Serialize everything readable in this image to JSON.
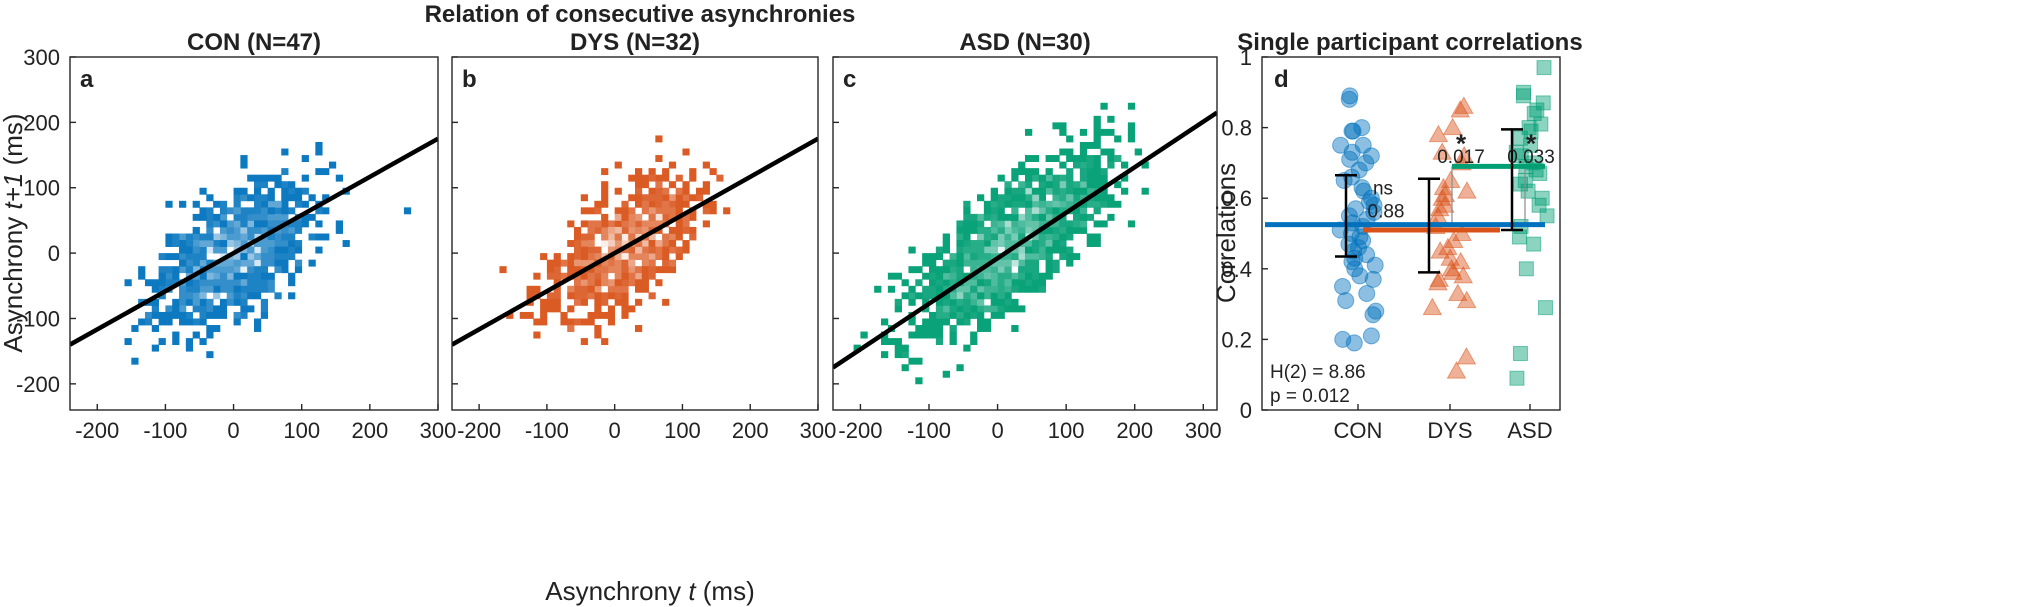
{
  "figure_title": "Relation of consecutive asynchronies",
  "shared_xlabel": "Asynchrony t (ms)",
  "shared_ylabel": "Asynchrony t+1 (ms)",
  "shared_xlabel_parts": {
    "pre": "Asynchrony ",
    "ital": "t",
    "post": " (ms)"
  },
  "shared_ylabel_parts": {
    "pre": "Asynchrony ",
    "ital": "t+1",
    "post": " (ms)"
  },
  "chart_data": [
    {
      "type": "heatmap",
      "panel": "a",
      "title": "CON (N=47)",
      "color": "#0072BD",
      "xlim": [
        -240,
        300
      ],
      "ylim": [
        -240,
        300
      ],
      "xticks": [
        -200,
        -100,
        0,
        100,
        200,
        300
      ],
      "yticks": [
        -200,
        -100,
        0,
        100,
        200,
        300
      ],
      "xtick_labels": [
        "-200",
        "-100",
        "0",
        "100",
        "200",
        "300"
      ],
      "ytick_labels": [
        "-200",
        "-100",
        "0",
        "100",
        "200",
        "300"
      ],
      "regression": {
        "x": [
          -240,
          300
        ],
        "y": [
          -140,
          175
        ]
      },
      "cloud": {
        "cx": 0,
        "cy": 0,
        "sx": 55,
        "sy": 55,
        "rho": 0.55,
        "n": 900,
        "seed": 11
      }
    },
    {
      "type": "heatmap",
      "panel": "b",
      "title": "DYS (N=32)",
      "color": "#D95319",
      "xlim": [
        -240,
        300
      ],
      "ylim": [
        -240,
        300
      ],
      "xticks": [
        -200,
        -100,
        0,
        100,
        200,
        300
      ],
      "yticks": [
        -200,
        -100,
        0,
        100,
        200,
        300
      ],
      "xtick_labels": [
        "-200",
        "-100",
        "0",
        "100",
        "200",
        "300"
      ],
      "ytick_labels": [],
      "regression": {
        "x": [
          -240,
          300
        ],
        "y": [
          -140,
          175
        ]
      },
      "cloud": {
        "cx": 10,
        "cy": 5,
        "sx": 55,
        "sy": 52,
        "rho": 0.6,
        "n": 750,
        "seed": 23
      }
    },
    {
      "type": "heatmap",
      "panel": "c",
      "title": "ASD (N=30)",
      "color": "#009E73",
      "xlim": [
        -240,
        320
      ],
      "ylim": [
        -240,
        300
      ],
      "xticks": [
        -200,
        -100,
        0,
        100,
        200,
        300
      ],
      "yticks": [
        -200,
        -100,
        0,
        100,
        200,
        300
      ],
      "xtick_labels": [
        "-200",
        "-100",
        "0",
        "100",
        "200",
        "300"
      ],
      "ytick_labels": [],
      "regression": {
        "x": [
          -240,
          320
        ],
        "y": [
          -175,
          215
        ]
      },
      "cloud": {
        "cx": 20,
        "cy": 15,
        "sx": 70,
        "sy": 68,
        "rho": 0.75,
        "n": 1200,
        "seed": 37
      }
    },
    {
      "type": "scatter",
      "panel": "d",
      "title": "Single participant correlations",
      "xlabel": "",
      "ylabel": "Correlations",
      "ylim": [
        0,
        1
      ],
      "yticks": [
        0,
        0.2,
        0.4,
        0.6,
        0.8,
        1
      ],
      "ytick_labels": [
        "0",
        "0.2",
        "0.4",
        "0.6",
        "0.8",
        "1"
      ],
      "categories": [
        "CON",
        "DYS",
        "ASD"
      ],
      "series": [
        {
          "name": "CON",
          "color": "#0072BD",
          "marker": "circle",
          "median": 0.525,
          "iqr": [
            0.435,
            0.665
          ],
          "values": [
            0.89,
            0.88,
            0.8,
            0.79,
            0.79,
            0.75,
            0.75,
            0.73,
            0.72,
            0.71,
            0.7,
            0.68,
            0.66,
            0.65,
            0.63,
            0.62,
            0.6,
            0.59,
            0.58,
            0.57,
            0.56,
            0.55,
            0.54,
            0.53,
            0.52,
            0.51,
            0.5,
            0.49,
            0.48,
            0.47,
            0.46,
            0.45,
            0.44,
            0.43,
            0.42,
            0.41,
            0.4,
            0.38,
            0.37,
            0.35,
            0.33,
            0.31,
            0.28,
            0.27,
            0.21,
            0.2,
            0.19
          ]
        },
        {
          "name": "DYS",
          "color": "#D95319",
          "marker": "triangle",
          "median": 0.51,
          "iqr": [
            0.39,
            0.655
          ],
          "values": [
            0.86,
            0.85,
            0.8,
            0.78,
            0.73,
            0.72,
            0.7,
            0.65,
            0.63,
            0.62,
            0.61,
            0.6,
            0.58,
            0.57,
            0.55,
            0.52,
            0.5,
            0.48,
            0.46,
            0.45,
            0.43,
            0.42,
            0.4,
            0.39,
            0.38,
            0.37,
            0.36,
            0.33,
            0.31,
            0.29,
            0.15,
            0.11
          ]
        },
        {
          "name": "ASD",
          "color": "#009E73",
          "marker": "square",
          "median": 0.69,
          "iqr": [
            0.51,
            0.795
          ],
          "values": [
            0.97,
            0.9,
            0.89,
            0.87,
            0.85,
            0.84,
            0.81,
            0.8,
            0.79,
            0.77,
            0.75,
            0.73,
            0.72,
            0.7,
            0.69,
            0.68,
            0.67,
            0.65,
            0.64,
            0.62,
            0.6,
            0.58,
            0.55,
            0.52,
            0.49,
            0.47,
            0.4,
            0.29,
            0.16,
            0.09
          ]
        }
      ],
      "comparisons": [
        {
          "pair": [
            "CON",
            "DYS"
          ],
          "p": "0.88",
          "sig": "ns"
        },
        {
          "pair": [
            "CON",
            "ASD"
          ],
          "p": "0.017",
          "sig": "*"
        },
        {
          "pair": [
            "DYS",
            "ASD"
          ],
          "p": "0.033",
          "sig": "*"
        }
      ],
      "stats_text": [
        "H(2) = 8.86",
        "p = 0.012"
      ]
    }
  ]
}
